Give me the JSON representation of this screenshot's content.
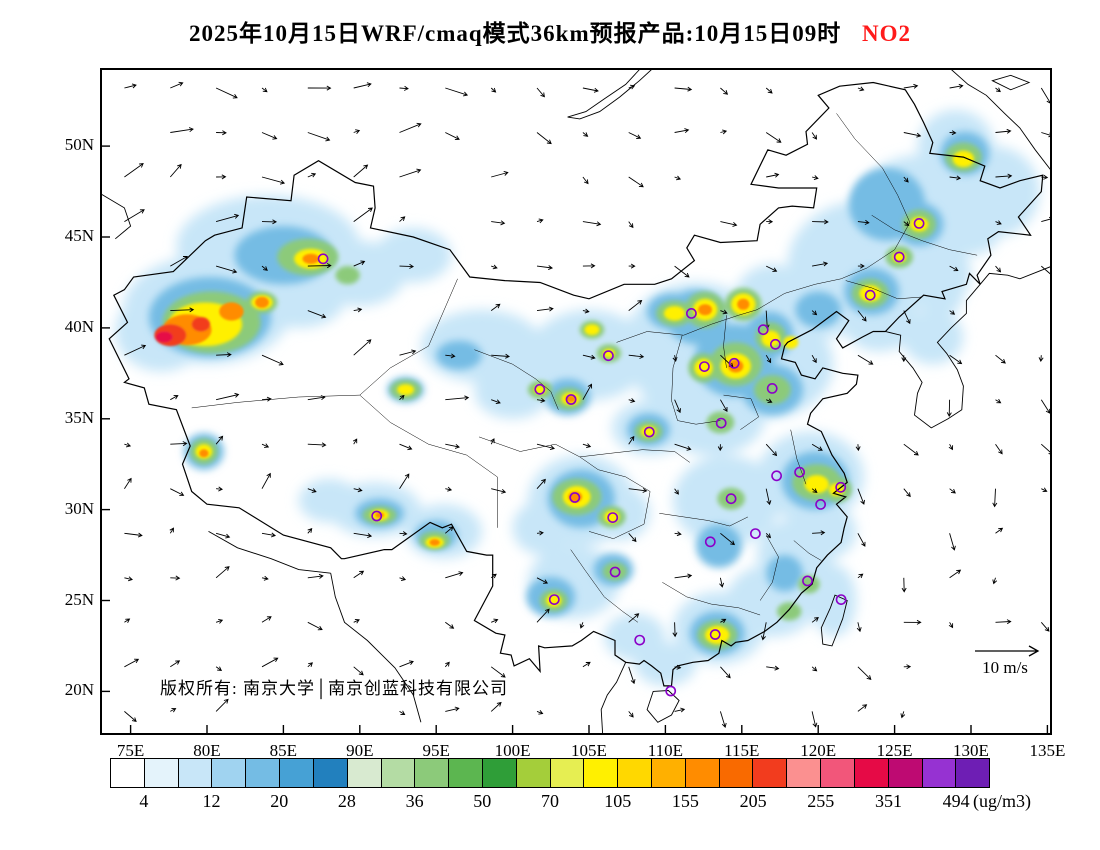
{
  "title": {
    "main": "2025年10月15日WRF/cmaq模式36km预报产品:10月15日09时",
    "species": "NO2",
    "species_color": "#ff1a1a"
  },
  "map": {
    "copyright": "版权所有: 南京大学│南京创蓝科技有限公司",
    "wind_ref_label": "10 m/s",
    "lat_ticks": [
      {
        "label": "50N",
        "lat": 50
      },
      {
        "label": "45N",
        "lat": 45
      },
      {
        "label": "40N",
        "lat": 40
      },
      {
        "label": "35N",
        "lat": 35
      },
      {
        "label": "30N",
        "lat": 30
      },
      {
        "label": "25N",
        "lat": 25
      },
      {
        "label": "20N",
        "lat": 20
      }
    ],
    "lon_ticks": [
      {
        "label": "75E",
        "lon": 75
      },
      {
        "label": "80E",
        "lon": 80
      },
      {
        "label": "85E",
        "lon": 85
      },
      {
        "label": "90E",
        "lon": 90
      },
      {
        "label": "95E",
        "lon": 95
      },
      {
        "label": "100E",
        "lon": 100
      },
      {
        "label": "105E",
        "lon": 105
      },
      {
        "label": "110E",
        "lon": 110
      },
      {
        "label": "115E",
        "lon": 115
      },
      {
        "label": "120E",
        "lon": 120
      },
      {
        "label": "125E",
        "lon": 125
      },
      {
        "label": "130E",
        "lon": 130
      },
      {
        "label": "135E",
        "lon": 135
      }
    ]
  },
  "colorbar": {
    "unit": "(ug/m3)",
    "labels": [
      "4",
      "12",
      "20",
      "28",
      "36",
      "50",
      "70",
      "105",
      "155",
      "205",
      "255",
      "351",
      "494"
    ],
    "colors": [
      "#FFFFFF",
      "#E4F3FB",
      "#C8E6F8",
      "#A0D3F0",
      "#74BCE4",
      "#46A1D5",
      "#2280BE",
      "#D8EAD0",
      "#B4DCA4",
      "#8CCA7A",
      "#5CB650",
      "#2F9E38",
      "#A4CE3A",
      "#E6EE52",
      "#FFF000",
      "#FFD800",
      "#FFB000",
      "#FF8C00",
      "#F96A00",
      "#F23C1E",
      "#FB9090",
      "#F2567A",
      "#E60A46",
      "#BE0A72",
      "#9632D2",
      "#6E1EB4"
    ]
  },
  "chart_data": {
    "type": "heatmap",
    "species": "NO2",
    "unit": "ug/m3",
    "model": "WRF/cmaq 36km",
    "valid_time": "2025-10-15 09",
    "extent": {
      "lon_min": 73.0,
      "lon_max": 135.3,
      "lat_min": 17.6,
      "lat_max": 54.3
    },
    "levels": [
      4,
      8,
      12,
      16,
      20,
      24,
      28,
      32,
      36,
      43,
      50,
      60,
      70,
      87.5,
      105,
      130,
      155,
      180,
      205,
      230,
      255,
      303,
      351,
      422.5,
      494
    ],
    "wind_vectors": {
      "reference_speed": "10 m/s"
    },
    "hotspots": [
      [
        84,
        44.5,
        6,
        2.8,
        2
      ],
      [
        80,
        41,
        5.5,
        3,
        2
      ],
      [
        90,
        43,
        3,
        1.8,
        2
      ],
      [
        98,
        39,
        4,
        2,
        2
      ],
      [
        105,
        38.5,
        4,
        2.5,
        2
      ],
      [
        112,
        39.5,
        4.5,
        3,
        2
      ],
      [
        116.5,
        38,
        4.5,
        3,
        2
      ],
      [
        113,
        35,
        3.5,
        2,
        2
      ],
      [
        109,
        34.5,
        2.5,
        1.5,
        2
      ],
      [
        123,
        43.5,
        5,
        3.5,
        2
      ],
      [
        126.5,
        46.5,
        4,
        3,
        2
      ],
      [
        120.5,
        41.5,
        3,
        2,
        2
      ],
      [
        104.5,
        30.5,
        3.5,
        2.5,
        2
      ],
      [
        114,
        30.5,
        3.5,
        2.5,
        2
      ],
      [
        119.5,
        31.8,
        3.5,
        2.5,
        2
      ],
      [
        113.5,
        23.5,
        3,
        2,
        2
      ],
      [
        117,
        25,
        3,
        2,
        2
      ],
      [
        104,
        26,
        3,
        2,
        2
      ],
      [
        91,
        30,
        3,
        1.5,
        2
      ],
      [
        95.5,
        28.8,
        2.5,
        1.5,
        2
      ],
      [
        131.5,
        47.5,
        3,
        2.5,
        2
      ],
      [
        129,
        50,
        2.5,
        2,
        2
      ],
      [
        110,
        21.5,
        2,
        1.2,
        2
      ],
      [
        100,
        36.5,
        2.5,
        1.5,
        2
      ],
      [
        110.5,
        37.5,
        2.5,
        2,
        2
      ],
      [
        124,
        40.5,
        2.5,
        1.8,
        2
      ],
      [
        107,
        29.8,
        2,
        1.5,
        2
      ],
      [
        86,
        41.5,
        3,
        1.5,
        2
      ],
      [
        127.5,
        43,
        2.5,
        2,
        2
      ],
      [
        121.5,
        44.5,
        2,
        1.5,
        2
      ],
      [
        117,
        41.5,
        2.5,
        2,
        2
      ],
      [
        93.5,
        44,
        2.5,
        1.5,
        2
      ],
      [
        77,
        39.8,
        3,
        2.2,
        2
      ],
      [
        88,
        30.5,
        2,
        1.2,
        2
      ],
      [
        102,
        29,
        2,
        1.5,
        2
      ],
      [
        108,
        23,
        2,
        1.3,
        2
      ],
      [
        121,
        25,
        1.5,
        2,
        2
      ],
      [
        128,
        41.8,
        1.5,
        1.2,
        2
      ],
      [
        130,
        45.5,
        2,
        1.5,
        2
      ],
      [
        127.5,
        39.5,
        2,
        1.5,
        2
      ],
      [
        118.5,
        27.5,
        2.5,
        2,
        2
      ],
      [
        120.5,
        28.8,
        2,
        1.5,
        2
      ],
      [
        85,
        44,
        3.2,
        1.6,
        4
      ],
      [
        80.2,
        40.6,
        4,
        2.2,
        4
      ],
      [
        124.5,
        46.8,
        2.5,
        2,
        4
      ],
      [
        114.5,
        38.2,
        2.6,
        2,
        4
      ],
      [
        112,
        40.6,
        2,
        1.5,
        4
      ],
      [
        117,
        36.6,
        2,
        1.4,
        4
      ],
      [
        103.6,
        36.2,
        1.5,
        1,
        4
      ],
      [
        104.5,
        30.6,
        2.2,
        1.6,
        4
      ],
      [
        119.8,
        31.6,
        2.2,
        1.6,
        4
      ],
      [
        113.4,
        23.2,
        1.8,
        1.2,
        4
      ],
      [
        123.5,
        42,
        1.8,
        1.3,
        4
      ],
      [
        126.6,
        45.7,
        1.6,
        1.2,
        4
      ],
      [
        91.3,
        29.8,
        1.6,
        0.8,
        4
      ],
      [
        108.9,
        34.4,
        1.4,
        0.9,
        4
      ],
      [
        129.6,
        49.6,
        1.6,
        1.2,
        4
      ],
      [
        116.8,
        39.6,
        1.6,
        1.3,
        4
      ],
      [
        102.5,
        25.2,
        1.6,
        1.1,
        4
      ],
      [
        106.6,
        26.7,
        1.3,
        0.9,
        4
      ],
      [
        113.5,
        28,
        1.5,
        1.2,
        4
      ],
      [
        110.4,
        40.9,
        1.6,
        1,
        4
      ],
      [
        95,
        28.6,
        1.4,
        0.8,
        4
      ],
      [
        79.8,
        33.2,
        1.3,
        1,
        4
      ],
      [
        93,
        36.6,
        1.2,
        0.7,
        4
      ],
      [
        120,
        41,
        1.5,
        1,
        4
      ],
      [
        117.8,
        26.5,
        1.2,
        1,
        4
      ],
      [
        96.5,
        38.5,
        1.5,
        0.8,
        4
      ],
      [
        86.6,
        43.9,
        2,
        1,
        9
      ],
      [
        80.3,
        40.3,
        3.2,
        1.7,
        9
      ],
      [
        93,
        36.6,
        1,
        0.55,
        9
      ],
      [
        103.7,
        36.1,
        1,
        0.6,
        9
      ],
      [
        101.8,
        36.6,
        0.8,
        0.5,
        9
      ],
      [
        106.3,
        38.6,
        0.8,
        0.5,
        9
      ],
      [
        110.6,
        40.8,
        1.2,
        0.7,
        9
      ],
      [
        112.6,
        41,
        1.3,
        1,
        9
      ],
      [
        115.1,
        41.3,
        1.2,
        0.9,
        9
      ],
      [
        114.6,
        38,
        1.7,
        1.2,
        9
      ],
      [
        112.5,
        37.8,
        1,
        0.8,
        9
      ],
      [
        117,
        36.6,
        1.2,
        0.8,
        9
      ],
      [
        116.9,
        39.5,
        1,
        0.8,
        9
      ],
      [
        123.4,
        41.9,
        1.2,
        0.8,
        9
      ],
      [
        126.6,
        45.7,
        1.1,
        0.8,
        9
      ],
      [
        125.3,
        43.9,
        0.9,
        0.6,
        9
      ],
      [
        104.2,
        30.7,
        1.6,
        1,
        9
      ],
      [
        106.5,
        29.6,
        0.9,
        0.6,
        9
      ],
      [
        108.9,
        34.3,
        0.9,
        0.55,
        9
      ],
      [
        113.6,
        34.8,
        0.9,
        0.6,
        9
      ],
      [
        114.3,
        30.6,
        0.9,
        0.6,
        9
      ],
      [
        119.9,
        31.5,
        1.6,
        1,
        9
      ],
      [
        121.3,
        31.1,
        0.9,
        0.7,
        9
      ],
      [
        113.4,
        23.1,
        1.3,
        0.8,
        9
      ],
      [
        118.1,
        24.4,
        0.8,
        0.5,
        9
      ],
      [
        119.4,
        25.9,
        0.7,
        0.5,
        9
      ],
      [
        102.7,
        25,
        0.9,
        0.6,
        9
      ],
      [
        106.7,
        26.6,
        0.8,
        0.5,
        9
      ],
      [
        91.3,
        29.7,
        1.1,
        0.5,
        9
      ],
      [
        94.9,
        28.3,
        1,
        0.5,
        9
      ],
      [
        79.8,
        33.2,
        0.9,
        0.7,
        9
      ],
      [
        129.5,
        49.4,
        1.2,
        0.8,
        9
      ],
      [
        83.6,
        41.4,
        1,
        0.6,
        9
      ],
      [
        89.2,
        42.9,
        0.8,
        0.5,
        9
      ],
      [
        105.2,
        39.9,
        0.8,
        0.5,
        9
      ],
      [
        79.9,
        40.2,
        2.4,
        1.2,
        14
      ],
      [
        83.6,
        41.4,
        0.7,
        0.4,
        14
      ],
      [
        86.8,
        43.8,
        1.1,
        0.55,
        14
      ],
      [
        93,
        36.6,
        0.55,
        0.3,
        14
      ],
      [
        103.8,
        36.1,
        0.6,
        0.35,
        14
      ],
      [
        110.6,
        40.8,
        0.7,
        0.4,
        14
      ],
      [
        105.2,
        39.9,
        0.5,
        0.3,
        14
      ],
      [
        112.6,
        41,
        0.8,
        0.6,
        14
      ],
      [
        115.1,
        41.3,
        0.8,
        0.6,
        14
      ],
      [
        114.6,
        37.9,
        1,
        0.7,
        14
      ],
      [
        112.5,
        37.8,
        0.6,
        0.5,
        14
      ],
      [
        116.9,
        39.4,
        0.6,
        0.45,
        14
      ],
      [
        123.4,
        41.9,
        0.7,
        0.45,
        14
      ],
      [
        126.6,
        45.7,
        0.6,
        0.4,
        14
      ],
      [
        104.2,
        30.7,
        0.9,
        0.6,
        14
      ],
      [
        106.5,
        29.6,
        0.5,
        0.35,
        14
      ],
      [
        108.9,
        34.3,
        0.5,
        0.3,
        14
      ],
      [
        119.9,
        31.4,
        0.8,
        0.5,
        14
      ],
      [
        113.4,
        23.1,
        0.8,
        0.5,
        14
      ],
      [
        91.3,
        29.7,
        0.6,
        0.3,
        14
      ],
      [
        94.9,
        28.2,
        0.6,
        0.3,
        14
      ],
      [
        79.8,
        33.2,
        0.55,
        0.4,
        14
      ],
      [
        102.7,
        25,
        0.5,
        0.35,
        14
      ],
      [
        129.5,
        49.3,
        0.7,
        0.45,
        14
      ],
      [
        101.8,
        36.6,
        0.4,
        0.25,
        14
      ],
      [
        106.3,
        38.6,
        0.4,
        0.25,
        14
      ],
      [
        125.3,
        43.9,
        0.45,
        0.3,
        14
      ],
      [
        121.2,
        31.1,
        0.5,
        0.35,
        14
      ],
      [
        118.2,
        39.2,
        0.5,
        0.35,
        14
      ],
      [
        78.7,
        39.9,
        1.6,
        0.85,
        17
      ],
      [
        81.6,
        40.9,
        0.8,
        0.5,
        17
      ],
      [
        83.6,
        41.4,
        0.45,
        0.3,
        17
      ],
      [
        114.6,
        37.9,
        0.5,
        0.35,
        17
      ],
      [
        104.1,
        30.7,
        0.45,
        0.3,
        17
      ],
      [
        103.8,
        36.1,
        0.35,
        0.2,
        17
      ],
      [
        112.6,
        41,
        0.45,
        0.3,
        17
      ],
      [
        79.8,
        33.1,
        0.3,
        0.22,
        17
      ],
      [
        94.9,
        28.2,
        0.35,
        0.18,
        17
      ],
      [
        86.8,
        43.8,
        0.55,
        0.28,
        17
      ],
      [
        91.3,
        29.7,
        0.3,
        0.16,
        17
      ],
      [
        115.1,
        41.3,
        0.4,
        0.3,
        17
      ],
      [
        77.6,
        39.6,
        1.05,
        0.6,
        19
      ],
      [
        79.6,
        40.2,
        0.6,
        0.4,
        19
      ],
      [
        77.2,
        39.5,
        0.55,
        0.3,
        22
      ]
    ],
    "city_markers": [
      {
        "name": "Urumqi",
        "lon": 87.6,
        "lat": 43.8
      },
      {
        "name": "Harbin",
        "lon": 126.6,
        "lat": 45.75
      },
      {
        "name": "Changchun",
        "lon": 125.3,
        "lat": 43.9
      },
      {
        "name": "Shenyang",
        "lon": 123.4,
        "lat": 41.8
      },
      {
        "name": "Hohhot",
        "lon": 111.7,
        "lat": 40.8
      },
      {
        "name": "Beijing",
        "lon": 116.4,
        "lat": 39.9
      },
      {
        "name": "Tianjin",
        "lon": 117.2,
        "lat": 39.1
      },
      {
        "name": "Shijiazhuang",
        "lon": 114.5,
        "lat": 38.05
      },
      {
        "name": "Taiyuan",
        "lon": 112.55,
        "lat": 37.87
      },
      {
        "name": "Yinchuan",
        "lon": 106.27,
        "lat": 38.47
      },
      {
        "name": "Xining",
        "lon": 101.78,
        "lat": 36.62
      },
      {
        "name": "Lanzhou",
        "lon": 103.83,
        "lat": 36.06
      },
      {
        "name": "Jinan",
        "lon": 116.99,
        "lat": 36.67
      },
      {
        "name": "Zhengzhou",
        "lon": 113.65,
        "lat": 34.76
      },
      {
        "name": "Xian",
        "lon": 108.95,
        "lat": 34.27
      },
      {
        "name": "Hefei",
        "lon": 117.28,
        "lat": 31.86
      },
      {
        "name": "Nanjing",
        "lon": 118.78,
        "lat": 32.06
      },
      {
        "name": "Shanghai",
        "lon": 121.47,
        "lat": 31.23
      },
      {
        "name": "Hangzhou",
        "lon": 120.16,
        "lat": 30.29
      },
      {
        "name": "Wuhan",
        "lon": 114.3,
        "lat": 30.6
      },
      {
        "name": "Chengdu",
        "lon": 104.07,
        "lat": 30.67
      },
      {
        "name": "Chongqing",
        "lon": 106.55,
        "lat": 29.56
      },
      {
        "name": "Lhasa",
        "lon": 91.11,
        "lat": 29.65
      },
      {
        "name": "Nanchang",
        "lon": 115.89,
        "lat": 28.68
      },
      {
        "name": "Changsha",
        "lon": 112.94,
        "lat": 28.23
      },
      {
        "name": "Guiyang",
        "lon": 106.71,
        "lat": 26.57
      },
      {
        "name": "Kunming",
        "lon": 102.73,
        "lat": 25.05
      },
      {
        "name": "Fuzhou",
        "lon": 119.3,
        "lat": 26.08
      },
      {
        "name": "Taipei",
        "lon": 121.5,
        "lat": 25.05
      },
      {
        "name": "Guangzhou",
        "lon": 113.26,
        "lat": 23.13
      },
      {
        "name": "Nanning",
        "lon": 108.32,
        "lat": 22.82
      },
      {
        "name": "Haikou",
        "lon": 110.35,
        "lat": 20.02
      }
    ]
  }
}
